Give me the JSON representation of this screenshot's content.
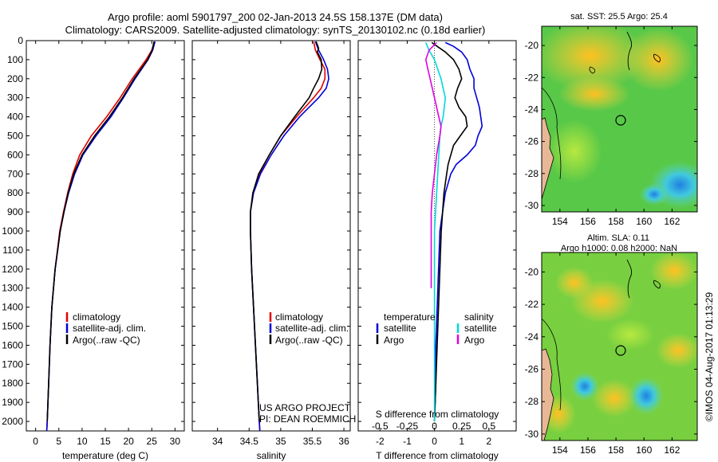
{
  "header": {
    "line1": "Argo profile: aoml 5901797_200 02-Jan-2013 24.5S 158.137E (DM data)",
    "line2": "Climatology: CARS2009. Satellite-adjusted climatology: synTS_20130102.nc (0.18d earlier)"
  },
  "colors": {
    "climatology": "#e00000",
    "satellite": "#0000d8",
    "argo": "#000000",
    "s_satellite": "#00d8d8",
    "s_argo": "#e000e0",
    "land": "#e8b896"
  },
  "legend": {
    "climatology": "climatology",
    "satellite": "satellite-adj. clim.",
    "argo": "Argo(..raw -QC)",
    "diff_temperature": "temperature",
    "diff_salinity": "salinity",
    "diff_satellite": "satellite",
    "diff_argo": "Argo"
  },
  "credit": {
    "line1": "US ARGO PROJECT",
    "line2": "PI: DEAN ROEMMICH"
  },
  "stamp": "©IMOS 04-Aug-2017 01:13:29",
  "chart_data": [
    {
      "type": "line",
      "xlabel": "temperature (deg C)",
      "ylim": [
        2050,
        0
      ],
      "xlim": [
        -2,
        32
      ],
      "xticks": [
        0,
        5,
        10,
        15,
        20,
        25,
        30
      ],
      "yticks": [
        0,
        100,
        200,
        300,
        400,
        500,
        600,
        700,
        800,
        900,
        1000,
        1100,
        1200,
        1300,
        1400,
        1500,
        1600,
        1700,
        1800,
        1900,
        2000
      ],
      "series": [
        {
          "name": "climatology",
          "depth": [
            5,
            50,
            100,
            200,
            300,
            400,
            500,
            600,
            700,
            800,
            900,
            1000,
            1200,
            1400,
            1600,
            1800,
            2000,
            2050
          ],
          "values": [
            25.6,
            25.0,
            23.8,
            20.8,
            18.2,
            15.3,
            12.0,
            9.5,
            8.0,
            6.9,
            6.0,
            5.2,
            4.2,
            3.5,
            3.1,
            2.8,
            2.5,
            2.4
          ]
        },
        {
          "name": "satellite-adj. clim.",
          "depth": [
            5,
            50,
            100,
            200,
            300,
            400,
            500,
            600,
            700,
            800,
            900,
            1000,
            1200,
            1400,
            1600,
            1800,
            2000,
            2050
          ],
          "values": [
            25.7,
            25.2,
            24.2,
            21.4,
            18.9,
            16.2,
            13.0,
            10.2,
            8.4,
            7.1,
            6.1,
            5.3,
            4.2,
            3.5,
            3.1,
            2.8,
            2.5,
            2.4
          ]
        },
        {
          "name": "Argo(..raw -QC)",
          "depth": [
            5,
            50,
            100,
            200,
            300,
            400,
            500,
            600,
            700,
            800,
            900,
            1000,
            1200,
            1400,
            1600,
            1800,
            2000
          ],
          "values": [
            25.5,
            25.1,
            24.1,
            21.2,
            18.7,
            15.9,
            12.7,
            10.0,
            8.2,
            7.0,
            6.1,
            5.3,
            4.2,
            3.5,
            3.1,
            2.8,
            2.5
          ]
        }
      ]
    },
    {
      "type": "line",
      "xlabel": "salinity",
      "ylim": [
        2050,
        0
      ],
      "xlim": [
        33.6,
        36.1
      ],
      "xticks": [
        34,
        34.5,
        35,
        35.5,
        36
      ],
      "series": [
        {
          "name": "climatology",
          "depth": [
            5,
            50,
            100,
            150,
            200,
            250,
            300,
            400,
            500,
            600,
            700,
            800,
            900,
            1000,
            1200,
            1400,
            1600,
            1800,
            2000,
            2050
          ],
          "values": [
            35.52,
            35.55,
            35.62,
            35.7,
            35.7,
            35.64,
            35.52,
            35.25,
            35.0,
            34.82,
            34.66,
            34.56,
            34.52,
            34.52,
            34.54,
            34.57,
            34.6,
            34.63,
            34.66,
            34.67
          ]
        },
        {
          "name": "satellite-adj. clim.",
          "depth": [
            5,
            50,
            100,
            150,
            200,
            250,
            300,
            400,
            500,
            600,
            700,
            800,
            900,
            1000,
            1200,
            1400,
            1600,
            1800,
            2000,
            2050
          ],
          "values": [
            35.55,
            35.6,
            35.68,
            35.74,
            35.76,
            35.72,
            35.6,
            35.3,
            35.05,
            34.85,
            34.68,
            34.57,
            34.52,
            34.52,
            34.54,
            34.57,
            34.6,
            34.63,
            34.66,
            34.67
          ]
        },
        {
          "name": "Argo(..raw -QC)",
          "depth": [
            5,
            40,
            60,
            100,
            150,
            200,
            250,
            300,
            400,
            500,
            600,
            700,
            800,
            900,
            1000,
            1200,
            1400,
            1600,
            1800,
            2000
          ],
          "values": [
            35.56,
            35.6,
            35.58,
            35.64,
            35.65,
            35.6,
            35.52,
            35.45,
            35.22,
            35.0,
            34.82,
            34.65,
            34.56,
            34.52,
            34.52,
            34.54,
            34.57,
            34.6,
            34.63,
            34.66
          ]
        }
      ]
    },
    {
      "type": "line",
      "xlabel": "T difference from climatology",
      "top_xlabel": "S difference from climatology",
      "ylim": [
        2050,
        0
      ],
      "xlim": [
        -2.8,
        3.0
      ],
      "xticks": [
        -2,
        -1,
        0,
        1,
        2
      ],
      "top_ticks": [
        -0.5,
        -0.25,
        0,
        0.25,
        0.5
      ],
      "top_tick_labels": [
        "-0.5",
        "-0.25",
        "0",
        "0.25",
        "0.5"
      ],
      "series": [
        {
          "name": "T satellite",
          "depth": [
            10,
            30,
            60,
            100,
            150,
            200,
            250,
            300,
            350,
            400,
            450,
            500,
            550,
            600,
            650,
            700,
            800,
            900,
            1000,
            1200,
            1400,
            1600,
            1800,
            2000
          ],
          "values": [
            0.4,
            0.7,
            1.0,
            1.2,
            1.3,
            1.45,
            1.45,
            1.55,
            1.65,
            1.7,
            1.75,
            1.6,
            1.5,
            1.2,
            0.8,
            0.6,
            0.4,
            0.3,
            0.2,
            0.15,
            0.1,
            0.05,
            0.05,
            0.0
          ]
        },
        {
          "name": "T Argo",
          "depth": [
            10,
            30,
            60,
            100,
            150,
            200,
            250,
            300,
            350,
            400,
            450,
            500,
            550,
            600,
            650,
            700,
            800,
            900,
            1000,
            1200,
            1400,
            1600,
            1800,
            2000
          ],
          "values": [
            -0.1,
            0.1,
            0.4,
            0.7,
            0.9,
            1.0,
            0.85,
            0.75,
            0.9,
            1.15,
            1.2,
            0.95,
            0.7,
            0.6,
            0.5,
            0.45,
            0.35,
            0.3,
            0.25,
            0.2,
            0.15,
            0.1,
            0.05,
            0.0
          ]
        },
        {
          "name": "S satellite",
          "depth": [
            10,
            50,
            100,
            150,
            200,
            250,
            300,
            350,
            400,
            450,
            500,
            600,
            700,
            800,
            900,
            1000,
            1200,
            1400,
            1600,
            1800,
            2000
          ],
          "values": [
            -0.08,
            -0.05,
            0.0,
            0.03,
            0.06,
            0.08,
            0.1,
            0.09,
            0.08,
            0.06,
            0.05,
            0.04,
            0.03,
            0.02,
            0.01,
            0.0,
            0.0,
            0.0,
            0.0,
            0.0,
            0.0
          ]
        },
        {
          "name": "S Argo",
          "depth": [
            10,
            50,
            100,
            150,
            200,
            250,
            300,
            350,
            400,
            450,
            500,
            600,
            700,
            800,
            900,
            1000,
            1200,
            1300
          ],
          "values": [
            0.02,
            -0.05,
            -0.08,
            -0.06,
            -0.04,
            -0.02,
            0.0,
            0.02,
            0.04,
            0.06,
            0.05,
            0.02,
            0.0,
            -0.02,
            -0.03,
            -0.03,
            -0.03,
            -0.03
          ]
        }
      ]
    },
    {
      "type": "heatmap",
      "title": "sat. SST: 25.5  Argo: 25.4",
      "xticks": [
        154,
        156,
        158,
        160,
        162
      ],
      "yticks": [
        -20,
        -22,
        -24,
        -26,
        -28,
        -30
      ],
      "xlim": [
        152.7,
        163.8
      ],
      "ylim": [
        -30.4,
        -18.8
      ],
      "argo_position": [
        158.14,
        -24.5
      ]
    },
    {
      "type": "heatmap",
      "title": "Altim. SLA: 0.11",
      "subtitle": "Argo h1000: 0.08  h2000: NaN",
      "xticks": [
        154,
        156,
        158,
        160,
        162
      ],
      "yticks": [
        -20,
        -22,
        -24,
        -26,
        -28,
        -30
      ],
      "xlim": [
        152.7,
        163.8
      ],
      "ylim": [
        -30.4,
        -18.8
      ],
      "argo_position": [
        158.14,
        -24.5
      ]
    }
  ]
}
